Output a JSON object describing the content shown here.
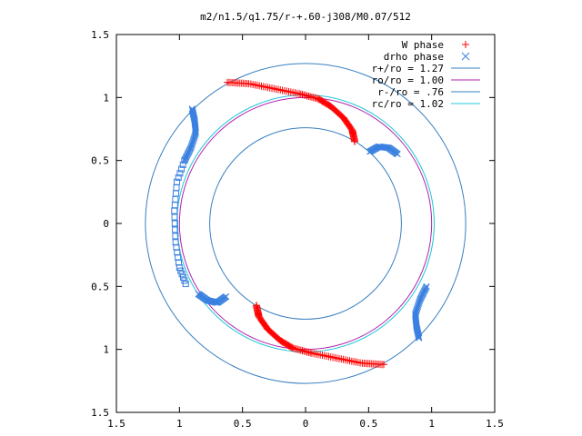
{
  "chart_data": {
    "type": "scatter",
    "title": "m2/n1.5/q1.75/r-+.60-j308/M0.07/512",
    "xlabel": "",
    "ylabel": "",
    "xlim": [
      -1.5,
      1.5
    ],
    "ylim": [
      -1.5,
      1.5
    ],
    "x_ticks": [
      -1.5,
      -1,
      -0.5,
      0,
      0.5,
      1,
      1.5
    ],
    "y_ticks": [
      -1.5,
      -1,
      -0.5,
      0,
      0.5,
      1,
      1.5
    ],
    "x_tick_labels": [
      "1.5",
      "1",
      "0.5",
      "0",
      "0.5",
      "1",
      "1.5"
    ],
    "y_tick_labels": [
      "1.5",
      "1",
      "0.5",
      "0",
      "0.5",
      "1",
      "1.5"
    ],
    "grid": false,
    "legend_position": "top-right",
    "circles": [
      {
        "label": "r+/ro = 1.27",
        "radius": 1.27,
        "color": "#3a80c0"
      },
      {
        "label": "ro/ro = 1.00",
        "radius": 1.0,
        "color": "#b020b0"
      },
      {
        "label": "r-/ro = .76",
        "radius": 0.76,
        "color": "#3a80c0"
      },
      {
        "label": "rc/ro = 1.02",
        "radius": 1.02,
        "color": "#20c8d8"
      }
    ],
    "series": [
      {
        "name": "W phase",
        "marker": "+",
        "color": "#ff0000",
        "arcs": [
          {
            "points": [
              [
                -0.62,
                1.12
              ],
              [
                -0.45,
                1.11
              ],
              [
                -0.25,
                1.07
              ],
              [
                -0.05,
                1.03
              ],
              [
                0.1,
                0.99
              ],
              [
                0.2,
                0.93
              ],
              [
                0.3,
                0.84
              ],
              [
                0.37,
                0.74
              ],
              [
                0.39,
                0.65
              ]
            ]
          },
          {
            "points": [
              [
                0.62,
                -1.12
              ],
              [
                0.45,
                -1.11
              ],
              [
                0.25,
                -1.07
              ],
              [
                0.05,
                -1.03
              ],
              [
                -0.1,
                -0.99
              ],
              [
                -0.2,
                -0.93
              ],
              [
                -0.3,
                -0.84
              ],
              [
                -0.37,
                -0.74
              ],
              [
                -0.39,
                -0.65
              ]
            ]
          }
        ]
      },
      {
        "name": "drho phase",
        "marker": "x",
        "color": "#3a80e0",
        "arcs": [
          {
            "points": [
              [
                -0.9,
                0.91
              ],
              [
                -0.88,
                0.82
              ],
              [
                -0.87,
                0.72
              ],
              [
                -0.91,
                0.6
              ],
              [
                -0.96,
                0.5
              ]
            ]
          },
          {
            "points": [
              [
                -0.63,
                -0.58
              ],
              [
                -0.7,
                -0.63
              ],
              [
                -0.78,
                -0.61
              ],
              [
                -0.85,
                -0.56
              ]
            ]
          },
          {
            "points": [
              [
                0.51,
                0.57
              ],
              [
                0.58,
                0.61
              ],
              [
                0.66,
                0.6
              ],
              [
                0.73,
                0.55
              ]
            ]
          },
          {
            "points": [
              [
                0.96,
                -0.5
              ],
              [
                0.91,
                -0.6
              ],
              [
                0.87,
                -0.72
              ],
              [
                0.88,
                -0.82
              ],
              [
                0.9,
                -0.91
              ]
            ]
          }
        ]
      }
    ],
    "extra_markers": {
      "marker": "square",
      "color": "#3a80e0",
      "arc": [
        [
          -0.96,
          0.5
        ],
        [
          -1.02,
          0.33
        ],
        [
          -1.04,
          0.1
        ],
        [
          -1.03,
          -0.15
        ],
        [
          -1.0,
          -0.35
        ],
        [
          -0.95,
          -0.48
        ]
      ]
    }
  }
}
